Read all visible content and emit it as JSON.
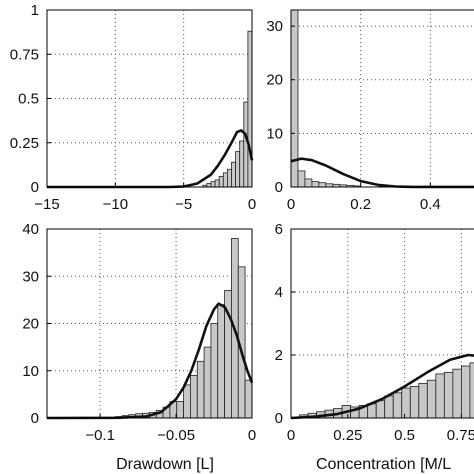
{
  "colors": {
    "bar_fill": "#c8c8c8",
    "bar_edge": "#222222",
    "curve": "#111111"
  },
  "chart_data": [
    {
      "type": "bar",
      "panel": "top-left",
      "xlim": [
        -15,
        0
      ],
      "ylim": [
        0,
        1
      ],
      "xticks": [
        -15,
        -10,
        -5,
        0
      ],
      "xtick_labels": [
        "−15",
        "−10",
        "−5",
        "0"
      ],
      "yticks": [
        0,
        0.25,
        0.5,
        0.75,
        1
      ],
      "ytick_labels": [
        "0",
        "0.25",
        "0.5",
        "0.75",
        "1"
      ],
      "xlabel": "",
      "ylabel": "",
      "title": "",
      "grid": true,
      "bin_width": 0.3,
      "bins": [
        {
          "x": -3.45,
          "y": 0.01
        },
        {
          "x": -3.15,
          "y": 0.02
        },
        {
          "x": -2.85,
          "y": 0.03
        },
        {
          "x": -2.55,
          "y": 0.04
        },
        {
          "x": -2.25,
          "y": 0.06
        },
        {
          "x": -1.95,
          "y": 0.08
        },
        {
          "x": -1.65,
          "y": 0.1
        },
        {
          "x": -1.35,
          "y": 0.14
        },
        {
          "x": -1.05,
          "y": 0.2
        },
        {
          "x": -0.75,
          "y": 0.26
        },
        {
          "x": -0.45,
          "y": 0.48
        },
        {
          "x": -0.15,
          "y": 0.88
        }
      ],
      "curve": [
        [
          -15,
          0
        ],
        [
          -6,
          0
        ],
        [
          -5,
          0.003
        ],
        [
          -4,
          0.02
        ],
        [
          -3,
          0.07
        ],
        [
          -2.5,
          0.12
        ],
        [
          -2,
          0.18
        ],
        [
          -1.5,
          0.25
        ],
        [
          -1.1,
          0.31
        ],
        [
          -0.8,
          0.32
        ],
        [
          -0.5,
          0.3
        ],
        [
          -0.25,
          0.24
        ],
        [
          0,
          0.15
        ]
      ]
    },
    {
      "type": "bar",
      "panel": "top-right",
      "xlim": [
        0,
        0.6
      ],
      "ylim": [
        0,
        33
      ],
      "xticks": [
        0,
        0.2,
        0.4
      ],
      "xtick_labels": [
        "0",
        "0.2",
        "0.4"
      ],
      "yticks": [
        0,
        10,
        20,
        30
      ],
      "ytick_labels": [
        "0",
        "10",
        "20",
        "30"
      ],
      "xlabel": "",
      "ylabel": "",
      "title": "",
      "grid": true,
      "bin_width": 0.02,
      "bins": [
        {
          "x": 0.01,
          "y": 33
        },
        {
          "x": 0.03,
          "y": 3
        },
        {
          "x": 0.05,
          "y": 1.5
        },
        {
          "x": 0.07,
          "y": 1
        },
        {
          "x": 0.09,
          "y": 0.8
        },
        {
          "x": 0.11,
          "y": 0.6
        },
        {
          "x": 0.13,
          "y": 0.5
        },
        {
          "x": 0.15,
          "y": 0.4
        },
        {
          "x": 0.17,
          "y": 0.3
        },
        {
          "x": 0.19,
          "y": 0.2
        }
      ],
      "curve": [
        [
          0,
          4.8
        ],
        [
          0.03,
          5.3
        ],
        [
          0.06,
          5.0
        ],
        [
          0.1,
          4.0
        ],
        [
          0.15,
          2.4
        ],
        [
          0.2,
          1.1
        ],
        [
          0.25,
          0.4
        ],
        [
          0.3,
          0.1
        ],
        [
          0.35,
          0.02
        ],
        [
          0.6,
          0
        ]
      ]
    },
    {
      "type": "bar",
      "panel": "bottom-left",
      "xlim": [
        -0.135,
        0
      ],
      "ylim": [
        0,
        40
      ],
      "xticks": [
        -0.1,
        -0.05,
        0
      ],
      "xtick_labels": [
        "−0.1",
        "−0.05",
        "0"
      ],
      "yticks": [
        0,
        10,
        20,
        30,
        40
      ],
      "ytick_labels": [
        "0",
        "10",
        "20",
        "30",
        "40"
      ],
      "xlabel": "Drawdown [L]",
      "ylabel": "",
      "title": "",
      "grid": true,
      "bin_width": 0.0045,
      "bins": [
        {
          "x": -0.0878,
          "y": 0.3
        },
        {
          "x": -0.0833,
          "y": 0.5
        },
        {
          "x": -0.0788,
          "y": 0.7
        },
        {
          "x": -0.0743,
          "y": 0.9
        },
        {
          "x": -0.0698,
          "y": 1.0
        },
        {
          "x": -0.0653,
          "y": 1.2
        },
        {
          "x": -0.0608,
          "y": 1.6
        },
        {
          "x": -0.0563,
          "y": 2.3
        },
        {
          "x": -0.0518,
          "y": 3.5
        },
        {
          "x": -0.0473,
          "y": 3.5
        },
        {
          "x": -0.0428,
          "y": 7
        },
        {
          "x": -0.0383,
          "y": 9
        },
        {
          "x": -0.0338,
          "y": 12
        },
        {
          "x": -0.0293,
          "y": 15
        },
        {
          "x": -0.0248,
          "y": 20
        },
        {
          "x": -0.0203,
          "y": 24
        },
        {
          "x": -0.0158,
          "y": 27
        },
        {
          "x": -0.0113,
          "y": 38
        },
        {
          "x": -0.0068,
          "y": 32
        },
        {
          "x": -0.0023,
          "y": 8
        }
      ],
      "curve": [
        [
          -0.135,
          0
        ],
        [
          -0.09,
          0.05
        ],
        [
          -0.07,
          0.3
        ],
        [
          -0.06,
          1.2
        ],
        [
          -0.05,
          4
        ],
        [
          -0.045,
          6.5
        ],
        [
          -0.04,
          10
        ],
        [
          -0.035,
          14.5
        ],
        [
          -0.03,
          19.5
        ],
        [
          -0.025,
          23
        ],
        [
          -0.022,
          24.2
        ],
        [
          -0.018,
          23.5
        ],
        [
          -0.014,
          21
        ],
        [
          -0.01,
          17.5
        ],
        [
          -0.006,
          13
        ],
        [
          -0.003,
          10
        ],
        [
          0,
          7.5
        ]
      ]
    },
    {
      "type": "bar",
      "panel": "bottom-right",
      "xlim": [
        0,
        0.92
      ],
      "ylim": [
        0,
        6
      ],
      "xticks": [
        0,
        0.25,
        0.5,
        0.75
      ],
      "xtick_labels": [
        "0",
        "0.25",
        "0.5",
        "0.75"
      ],
      "yticks": [
        0,
        2,
        4,
        6
      ],
      "ytick_labels": [
        "0",
        "2",
        "4",
        "6"
      ],
      "xlabel": "Concentration [M/L",
      "ylabel": "",
      "title": "",
      "grid": true,
      "bin_width": 0.0375,
      "bins": [
        {
          "x": 0.0563,
          "y": 0.1
        },
        {
          "x": 0.0938,
          "y": 0.15
        },
        {
          "x": 0.1313,
          "y": 0.2
        },
        {
          "x": 0.1688,
          "y": 0.25
        },
        {
          "x": 0.2063,
          "y": 0.3
        },
        {
          "x": 0.2438,
          "y": 0.4
        },
        {
          "x": 0.2813,
          "y": 0.35
        },
        {
          "x": 0.3188,
          "y": 0.4
        },
        {
          "x": 0.3563,
          "y": 0.45
        },
        {
          "x": 0.3938,
          "y": 0.55
        },
        {
          "x": 0.4313,
          "y": 0.7
        },
        {
          "x": 0.4688,
          "y": 0.8
        },
        {
          "x": 0.5063,
          "y": 0.95
        },
        {
          "x": 0.5438,
          "y": 1.0
        },
        {
          "x": 0.5813,
          "y": 1.1
        },
        {
          "x": 0.6188,
          "y": 1.2
        },
        {
          "x": 0.6563,
          "y": 1.4
        },
        {
          "x": 0.6938,
          "y": 1.45
        },
        {
          "x": 0.7313,
          "y": 1.55
        },
        {
          "x": 0.7688,
          "y": 1.65
        },
        {
          "x": 0.8063,
          "y": 1.75
        },
        {
          "x": 0.8438,
          "y": 1.85
        },
        {
          "x": 0.8813,
          "y": 2.2
        }
      ],
      "curve": [
        [
          0,
          0
        ],
        [
          0.1,
          0.04
        ],
        [
          0.2,
          0.12
        ],
        [
          0.3,
          0.3
        ],
        [
          0.4,
          0.6
        ],
        [
          0.5,
          1.0
        ],
        [
          0.6,
          1.45
        ],
        [
          0.7,
          1.85
        ],
        [
          0.78,
          2.0
        ],
        [
          0.85,
          1.95
        ],
        [
          0.92,
          1.7
        ]
      ]
    }
  ]
}
